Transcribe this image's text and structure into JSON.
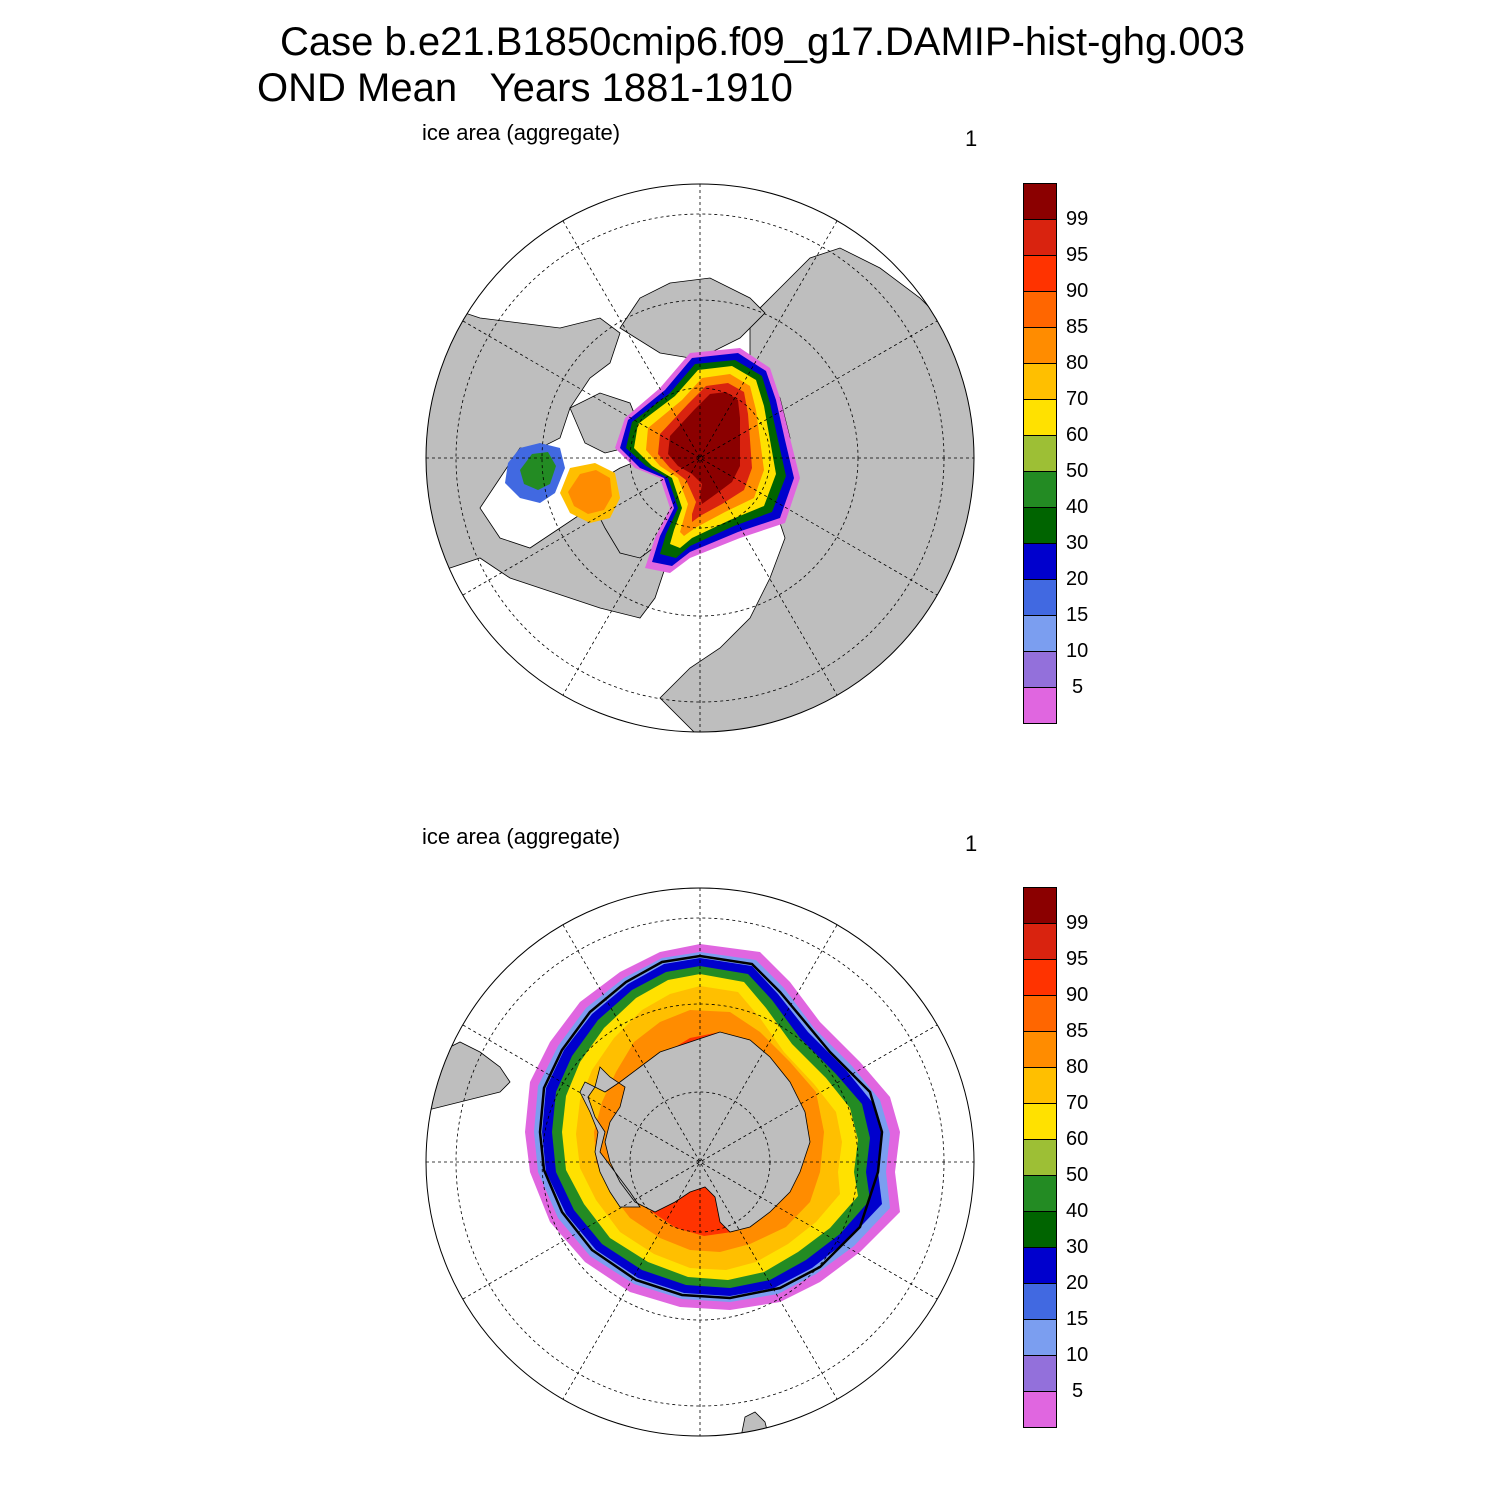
{
  "title_line1": "Case b.e21.B1850cmip6.f09_g17.DAMIP-hist-ghg.003",
  "title_line2": "OND Mean   Years 1881-1910",
  "panels": [
    {
      "id": "north",
      "hemisphere": "NH",
      "left_label": "ice area  (aggregate)",
      "right_label": "1"
    },
    {
      "id": "south",
      "hemisphere": "SH",
      "left_label": "ice area  (aggregate)",
      "right_label": "1"
    }
  ],
  "colorbar": {
    "labels": [
      "99",
      "95",
      "90",
      "85",
      "80",
      "70",
      "60",
      "50",
      "40",
      "30",
      "20",
      "15",
      "10",
      "5"
    ],
    "colors": [
      "#8b0000",
      "#d9230f",
      "#ff3300",
      "#ff6600",
      "#ff8c00",
      "#ffbf00",
      "#ffe100",
      "#9dbf35",
      "#238b23",
      "#006400",
      "#0000cd",
      "#4169e1",
      "#7b9ef0",
      "#9370db",
      "#e066e0"
    ]
  },
  "map_colors": {
    "land": "#bebebe",
    "ocean": "#ffffff",
    "contour": "#000000"
  }
}
